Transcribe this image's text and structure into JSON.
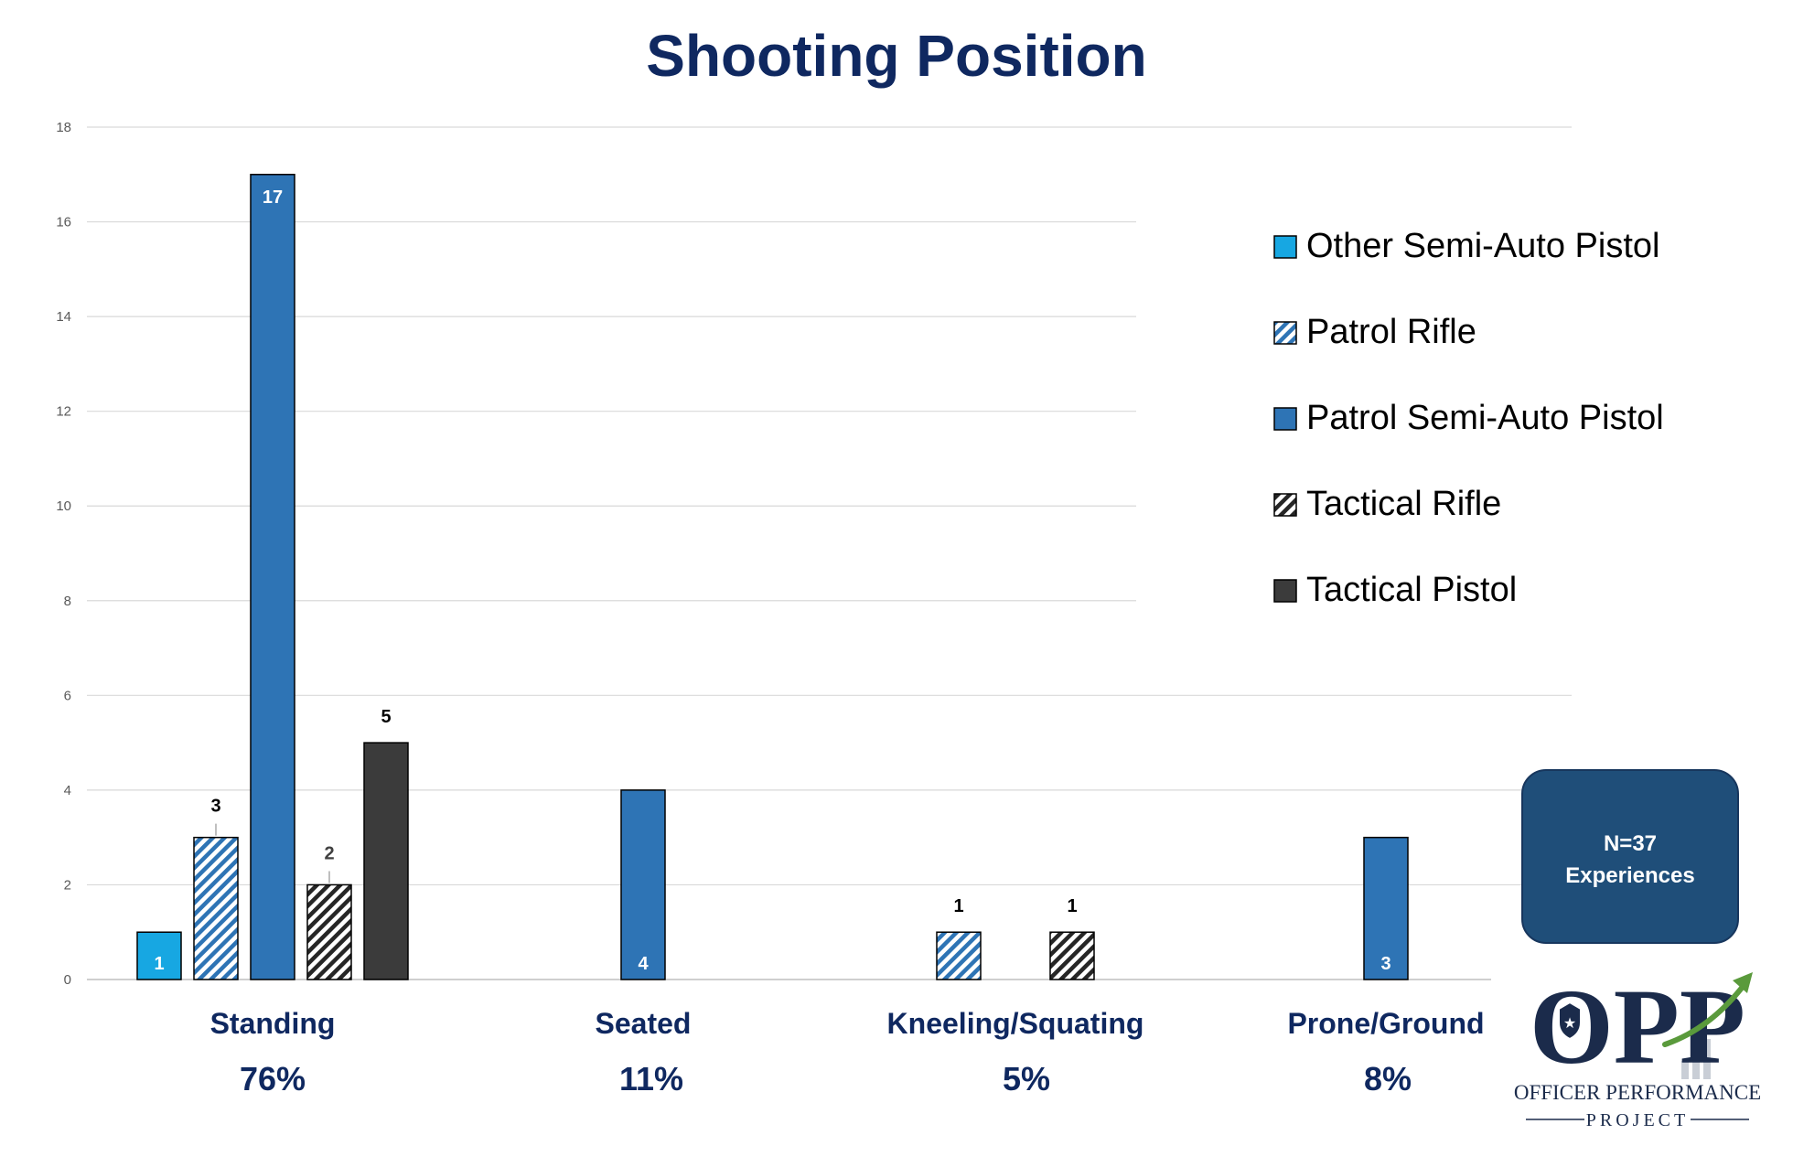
{
  "chart_data": {
    "type": "bar",
    "title": "Shooting Position",
    "categories": [
      "Standing",
      "Seated",
      "Kneeling/Squating",
      "Prone/Ground"
    ],
    "category_percent_labels": [
      "76%",
      "11%",
      "5%",
      "8%"
    ],
    "ylim": [
      0,
      18
    ],
    "yticks": [
      "0",
      "2",
      "4",
      "6",
      "8",
      "10",
      "12",
      "14",
      "16",
      "18"
    ],
    "grid": true,
    "legend_position": "right",
    "series": [
      {
        "name": "Other Semi-Auto Pistol",
        "values": [
          1,
          null,
          null,
          null
        ],
        "labels": [
          "1",
          "",
          "",
          ""
        ],
        "color": "#17a7e2",
        "pattern": "solid"
      },
      {
        "name": "Patrol Rifle",
        "values": [
          3,
          null,
          1,
          null
        ],
        "labels": [
          "3",
          "",
          "1",
          ""
        ],
        "color": "#2e74b5",
        "pattern": "diagonal-stripes"
      },
      {
        "name": "Patrol Semi-Auto Pistol",
        "values": [
          17,
          4,
          null,
          3
        ],
        "labels": [
          "17",
          "4",
          "",
          "3"
        ],
        "color": "#2e74b5",
        "pattern": "solid"
      },
      {
        "name": "Tactical Rifle",
        "values": [
          2,
          null,
          1,
          null
        ],
        "labels": [
          "2",
          "",
          "1",
          ""
        ],
        "color": "#262626",
        "pattern": "diagonal-stripes"
      },
      {
        "name": "Tactical Pistol",
        "values": [
          5,
          null,
          null,
          null
        ],
        "labels": [
          "5",
          "",
          "",
          ""
        ],
        "color": "#3b3b3b",
        "pattern": "solid"
      }
    ]
  },
  "callout": {
    "line1": "N=37",
    "line2": "Experiences",
    "color": "#1f4e79"
  },
  "logo": {
    "mark": "OPP",
    "line1": "OFFICER PERFORMANCE",
    "line2": "PROJECT",
    "navy": "#1b2b4b",
    "arrow_color": "#5a9a3c",
    "icon": "police-badge-icon"
  },
  "colors": {
    "title": "#0f2860",
    "axis_label": "#0f2860",
    "tick": "#595959",
    "grid": "#d9d9d9"
  }
}
